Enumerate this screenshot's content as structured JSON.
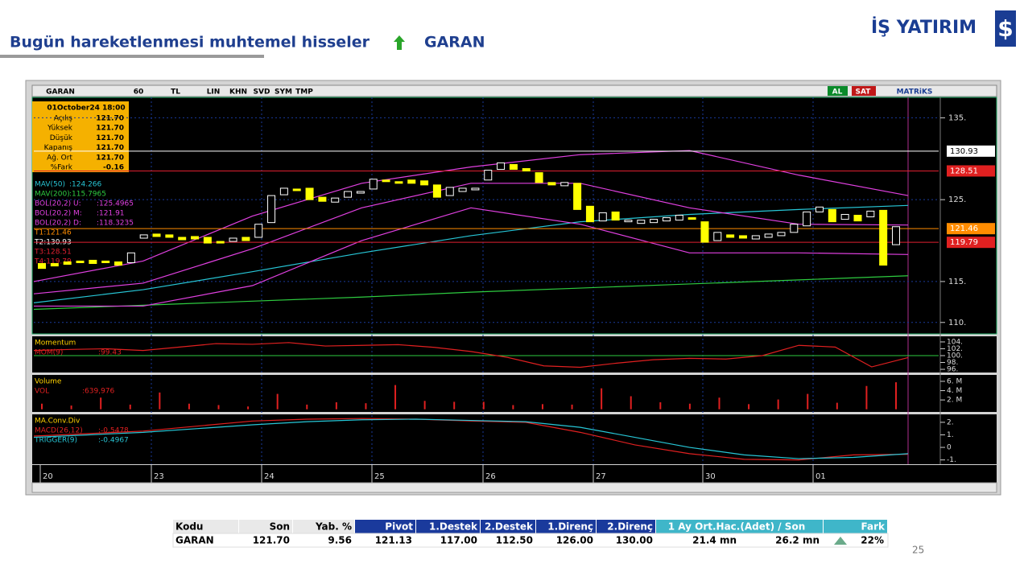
{
  "header": {
    "title": "Bugün hareketlenmesi muhtemel hisseler",
    "stock": "GARAN",
    "logo": "İŞ YATIRIM"
  },
  "chart": {
    "toolbar": [
      "GARAN",
      "60",
      "TL",
      "LIN",
      "KHN",
      "SVD",
      "SYM",
      "TMP",
      "AL",
      "SAT",
      "MATRiKS"
    ],
    "info": {
      "title": "01October24 18:00",
      "rows": [
        [
          "Açılış",
          "121.70"
        ],
        [
          "Yüksek",
          "121.70"
        ],
        [
          "Düşük",
          "121.70"
        ],
        [
          "Kapanış",
          "121.70"
        ],
        [
          "Ağ. Ort",
          "121.70"
        ],
        [
          "%Fark",
          "-0.16"
        ]
      ]
    },
    "ylim": [
      108.7,
      137.5
    ],
    "yticks": [
      {
        "value": 135,
        "label": "135."
      },
      {
        "value": 125,
        "label": "125."
      },
      {
        "value": 115,
        "label": "115."
      },
      {
        "value": 110,
        "label": "110."
      }
    ],
    "legend": [
      {
        "label": "MAV(50)",
        "text": ":124.266",
        "color": "#27c6d6",
        "values": [
          112.4,
          114.0,
          116.2,
          118.5,
          120.6,
          122.3,
          123.2,
          123.8,
          124.3
        ]
      },
      {
        "label": "MAV(200)",
        "text": ":115.7965",
        "color": "#2ecc40",
        "values": [
          111.6,
          112.1,
          112.6,
          113.1,
          113.7,
          114.2,
          114.7,
          115.2,
          115.7
        ]
      },
      {
        "label": "BOL(20,2) U:",
        "text": ":125.4965",
        "color": "#e040e0",
        "values": [
          115.0,
          117.5,
          123.0,
          127.0,
          129.0,
          130.5,
          131.0,
          128.0,
          125.5
        ]
      },
      {
        "label": "BOL(20,2) M:",
        "text": ":121.91",
        "color": "#e040e0",
        "values": [
          113.5,
          114.8,
          119.0,
          124.0,
          127.0,
          127.0,
          124.0,
          122.0,
          121.9
        ]
      },
      {
        "label": "BOL(20,2) D:",
        "text": ":118.3235",
        "color": "#e040e0",
        "values": [
          112.0,
          112.0,
          114.5,
          120.0,
          124.0,
          122.0,
          118.5,
          118.5,
          118.3
        ]
      }
    ],
    "levels": [
      {
        "label": "T1:121.46",
        "value": 121.46,
        "color": "#ff8c00"
      },
      {
        "label": "T2:130.93",
        "value": 130.93,
        "color": "#ffffff"
      },
      {
        "label": "T3:128.51",
        "value": 128.51,
        "color": "#e02030"
      },
      {
        "label": "T4:119.79",
        "value": 119.79,
        "color": "#e02030"
      }
    ],
    "candles": [
      [
        117.2,
        116.6
      ],
      [
        117.2,
        116.9
      ],
      [
        117.4,
        117.1
      ],
      [
        117.5,
        117.3
      ],
      [
        117.6,
        117.2
      ],
      [
        117.5,
        117.3
      ],
      [
        117.4,
        117.0
      ],
      [
        117.3,
        118.5
      ],
      [
        120.3,
        120.7
      ],
      [
        120.8,
        120.5
      ],
      [
        120.7,
        120.4
      ],
      [
        120.4,
        120.1
      ],
      [
        120.5,
        120.2
      ],
      [
        120.4,
        119.7
      ],
      [
        119.9,
        119.7
      ],
      [
        119.9,
        120.3
      ],
      [
        120.4,
        120.0
      ],
      [
        120.4,
        122.0
      ],
      [
        122.2,
        125.5
      ],
      [
        125.6,
        126.4
      ],
      [
        126.3,
        126.1
      ],
      [
        126.4,
        125.0
      ],
      [
        125.3,
        124.8
      ],
      [
        124.7,
        125.2
      ],
      [
        125.3,
        126.0
      ],
      [
        125.8,
        126.0
      ],
      [
        126.3,
        127.5
      ],
      [
        127.4,
        127.2
      ],
      [
        127.2,
        127.0
      ],
      [
        127.4,
        127.0
      ],
      [
        127.3,
        126.8
      ],
      [
        126.8,
        125.3
      ],
      [
        125.5,
        126.5
      ],
      [
        126.0,
        126.4
      ],
      [
        126.2,
        126.4
      ],
      [
        127.4,
        128.6
      ],
      [
        128.7,
        129.5
      ],
      [
        129.3,
        128.7
      ],
      [
        128.8,
        128.5
      ],
      [
        128.3,
        127.1
      ],
      [
        127.1,
        126.8
      ],
      [
        126.7,
        127.1
      ],
      [
        127.0,
        123.8
      ],
      [
        124.2,
        122.3
      ],
      [
        122.4,
        123.4
      ],
      [
        123.5,
        122.5
      ],
      [
        122.3,
        122.5
      ],
      [
        122.1,
        122.5
      ],
      [
        122.2,
        122.6
      ],
      [
        122.4,
        122.8
      ],
      [
        122.5,
        123.1
      ],
      [
        122.8,
        122.6
      ],
      [
        122.3,
        119.8
      ],
      [
        120.0,
        121.0
      ],
      [
        120.7,
        120.4
      ],
      [
        120.6,
        120.3
      ],
      [
        120.2,
        120.6
      ],
      [
        120.4,
        120.8
      ],
      [
        120.6,
        121.0
      ],
      [
        121.0,
        122.0
      ],
      [
        121.8,
        123.5
      ],
      [
        123.5,
        124.1
      ],
      [
        123.8,
        122.3
      ],
      [
        122.6,
        123.2
      ],
      [
        123.1,
        122.4
      ],
      [
        122.9,
        123.6
      ],
      [
        123.7,
        117.0
      ],
      [
        119.5,
        121.7
      ]
    ],
    "momentum": {
      "title": "Momentum",
      "ylim": [
        95.3,
        105.4
      ],
      "baseline": 100,
      "yticks": [
        {
          "value": 104,
          "label": "104."
        },
        {
          "value": 102,
          "label": "102."
        },
        {
          "value": 100,
          "label": "100."
        },
        {
          "value": 98,
          "label": "98."
        },
        {
          "value": 96,
          "label": "96."
        }
      ],
      "legend": [
        {
          "label": "MOM(9)",
          "text": ":99.43",
          "color": "#e02020",
          "values": [
            101.5,
            101.8,
            102.0,
            101.5,
            102.5,
            103.5,
            103.3,
            103.8,
            102.8,
            103.0,
            103.2,
            102.4,
            101.2,
            99.5,
            97.0,
            96.6,
            97.8,
            98.8,
            99.2,
            99.0,
            100.0,
            103.0,
            102.5,
            96.7,
            99.43
          ]
        }
      ]
    },
    "volume": {
      "title": "Volume",
      "ylim": [
        -0.4,
        7.2
      ],
      "yticks": [
        {
          "value": 6,
          "label": "6. M"
        },
        {
          "value": 4,
          "label": "4. M"
        },
        {
          "value": 2,
          "label": "2. M"
        }
      ],
      "legend": [
        {
          "label": "VOL",
          "text": ":639,976",
          "color": "#e02020",
          "values": [
            1.2,
            0.8,
            2.5,
            1.0,
            3.6,
            1.2,
            0.9,
            0.6,
            3.3,
            1.0,
            1.5,
            1.3,
            5.2,
            1.8,
            1.6,
            1.6,
            0.9,
            1.1,
            1.0,
            4.5,
            2.8,
            1.5,
            1.2,
            2.5,
            1.1,
            2.1,
            3.3,
            1.4,
            5.0,
            5.8
          ]
        }
      ]
    },
    "macd": {
      "title": "MA.Conv.Div",
      "ylim": [
        -1.28,
        2.57
      ],
      "yticks": [
        {
          "value": 2,
          "label": "2."
        },
        {
          "value": 1,
          "label": "1."
        },
        0,
        {
          "value": -1,
          "label": "-1."
        }
      ],
      "legend": [
        {
          "label": "MACD(26,12)",
          "text": ":-0.5478",
          "color": "#e02020",
          "values": [
            0.9,
            1.1,
            1.3,
            1.7,
            2.1,
            2.25,
            2.3,
            2.25,
            2.1,
            2.0,
            1.2,
            0.2,
            -0.5,
            -0.95,
            -1.0,
            -0.6,
            -0.55
          ]
        },
        {
          "label": "TRIGGER(9)",
          "text": ":-0.4967",
          "color": "#27c6d6",
          "values": [
            0.8,
            1.0,
            1.2,
            1.5,
            1.8,
            2.05,
            2.2,
            2.25,
            2.15,
            2.05,
            1.6,
            0.8,
            0.0,
            -0.6,
            -0.9,
            -0.8,
            -0.5
          ]
        }
      ]
    },
    "dates": [
      "20",
      "23",
      "24",
      "25",
      "26",
      "27",
      "30",
      "01"
    ]
  },
  "table": {
    "header": [
      "Kodu",
      "Son",
      "Yab. %",
      "Pivot",
      "1.Destek",
      "2.Destek",
      "1.Direnç",
      "2.Direnç",
      "1 Ay Ort.Hac.(Adet)  /  Son",
      "Fark"
    ],
    "rows": [
      [
        "GARAN",
        "121.70",
        "9.56",
        "121.13",
        "117.00",
        "112.50",
        "126.00",
        "130.00",
        "21.4 mn",
        "26.2 mn",
        "22%"
      ]
    ]
  },
  "page_number": "25"
}
